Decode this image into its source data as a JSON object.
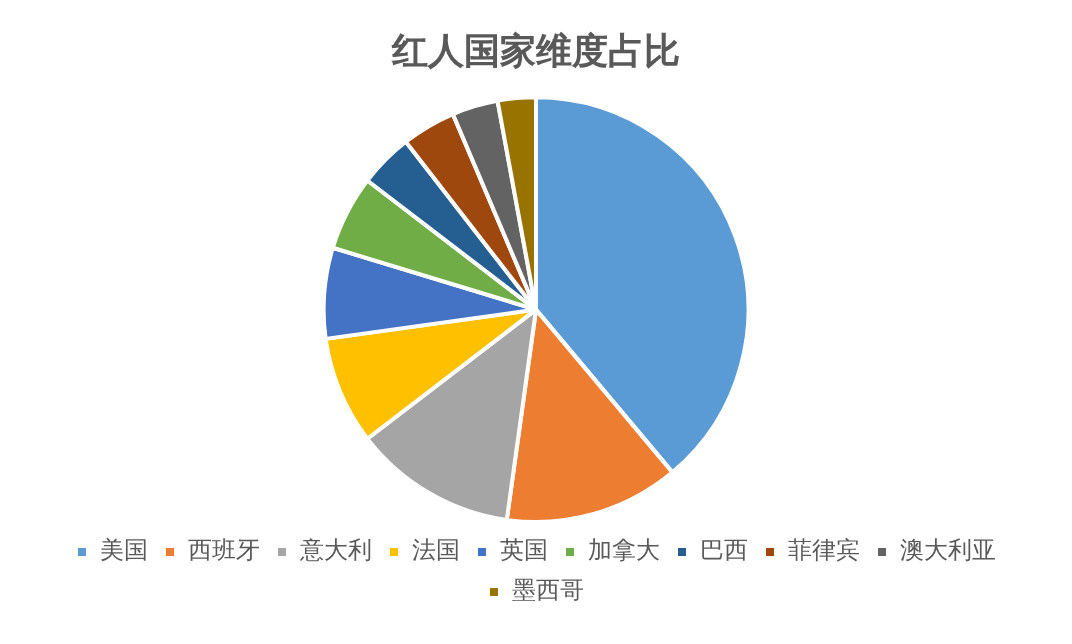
{
  "chart_data": {
    "type": "pie",
    "title": "红人国家维度占比",
    "categories": [
      "美国",
      "西班牙",
      "意大利",
      "法国",
      "英国",
      "加拿大",
      "巴西",
      "菲律宾",
      "澳大利亚",
      "墨西哥"
    ],
    "values": [
      38.9,
      13.3,
      12.4,
      8.2,
      6.9,
      5.7,
      4.1,
      4.1,
      3.5,
      2.9
    ],
    "colors": [
      "#5b9bd5",
      "#ed7d31",
      "#a5a5a5",
      "#ffc000",
      "#4472c4",
      "#70ad47",
      "#255e91",
      "#9e480e",
      "#636363",
      "#997300"
    ],
    "legend": "bottom"
  }
}
